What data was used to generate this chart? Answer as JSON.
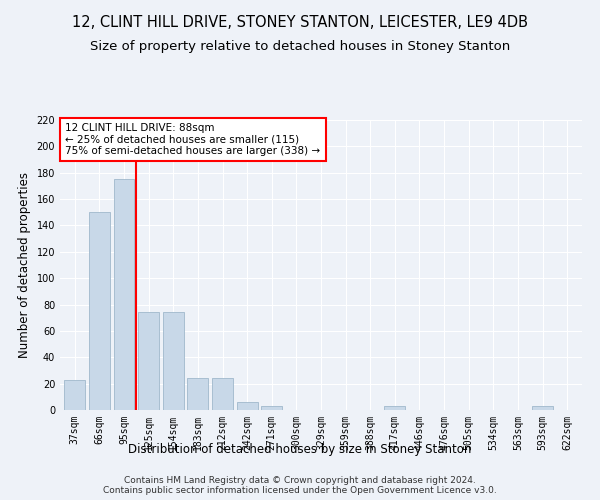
{
  "title": "12, CLINT HILL DRIVE, STONEY STANTON, LEICESTER, LE9 4DB",
  "subtitle": "Size of property relative to detached houses in Stoney Stanton",
  "xlabel": "Distribution of detached houses by size in Stoney Stanton",
  "ylabel": "Number of detached properties",
  "categories": [
    "37sqm",
    "66sqm",
    "95sqm",
    "125sqm",
    "154sqm",
    "183sqm",
    "212sqm",
    "242sqm",
    "271sqm",
    "300sqm",
    "329sqm",
    "359sqm",
    "388sqm",
    "417sqm",
    "446sqm",
    "476sqm",
    "505sqm",
    "534sqm",
    "563sqm",
    "593sqm",
    "622sqm"
  ],
  "values": [
    23,
    150,
    175,
    74,
    74,
    24,
    24,
    6,
    3,
    0,
    0,
    0,
    0,
    3,
    0,
    0,
    0,
    0,
    0,
    3,
    0
  ],
  "bar_color": "#c8d8e8",
  "bar_edge_color": "#a0b8cc",
  "vline_x": 2.5,
  "vline_color": "red",
  "annotation_text": "12 CLINT HILL DRIVE: 88sqm\n← 25% of detached houses are smaller (115)\n75% of semi-detached houses are larger (338) →",
  "annotation_box_color": "white",
  "annotation_box_edge": "red",
  "ylim": [
    0,
    220
  ],
  "yticks": [
    0,
    20,
    40,
    60,
    80,
    100,
    120,
    140,
    160,
    180,
    200,
    220
  ],
  "background_color": "#eef2f8",
  "footer": "Contains HM Land Registry data © Crown copyright and database right 2024.\nContains public sector information licensed under the Open Government Licence v3.0.",
  "title_fontsize": 10.5,
  "subtitle_fontsize": 9.5,
  "xlabel_fontsize": 8.5,
  "ylabel_fontsize": 8.5,
  "tick_fontsize": 7,
  "footer_fontsize": 6.5
}
